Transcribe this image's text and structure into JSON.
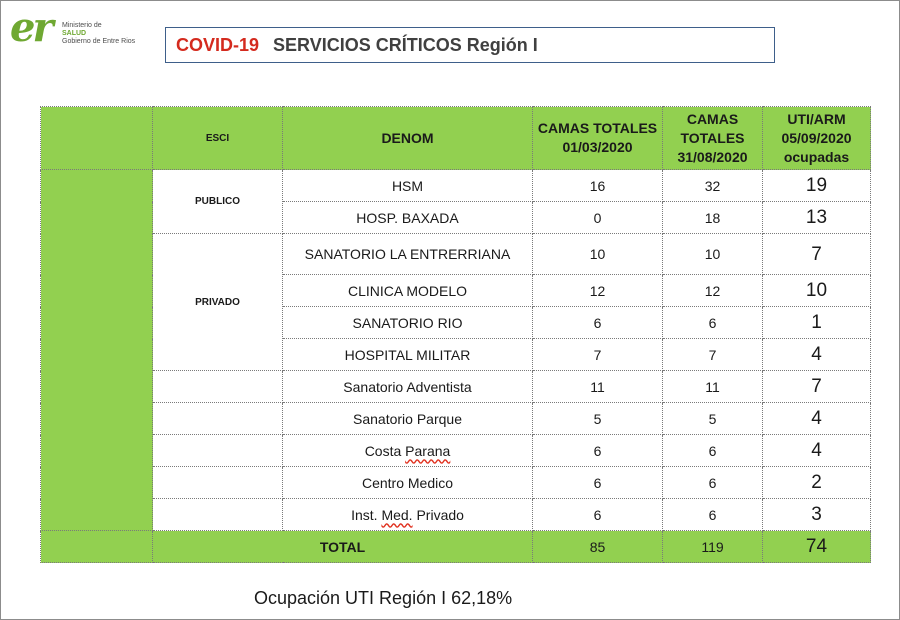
{
  "logo": {
    "mark": "er",
    "line1": "Ministerio de",
    "line2": "SALUD",
    "line3": "Gobierno de Entre Rios"
  },
  "title": {
    "covid": "COVID-19",
    "rest": "SERVICIOS CRÍTICOS  Región I"
  },
  "table": {
    "headers": {
      "esci": "ESCI",
      "denom": "DENOM",
      "camas_totales_1": "CAMAS TOTALES 01/03/2020",
      "camas_totales_2": "CAMAS TOTALES 31/08/2020",
      "uti_arm": "UTI/ARM 05/09/2020 ocupadas"
    },
    "groups": {
      "publico": "PUBLICO",
      "privado": "PRIVADO"
    },
    "rows": [
      {
        "denom": "HSM",
        "c1": "16",
        "c2": "32",
        "occ": "19"
      },
      {
        "denom": "HOSP. BAXADA",
        "c1": "0",
        "c2": "18",
        "occ": "13"
      },
      {
        "denom": "SANATORIO LA ENTRERRIANA",
        "c1": "10",
        "c2": "10",
        "occ": "7"
      },
      {
        "denom": "CLINICA MODELO",
        "c1": "12",
        "c2": "12",
        "occ": "10"
      },
      {
        "denom": "SANATORIO RIO",
        "c1": "6",
        "c2": "6",
        "occ": "1"
      },
      {
        "denom": "HOSPITAL MILITAR",
        "c1": "7",
        "c2": "7",
        "occ": "4"
      },
      {
        "denom": "Sanatorio Adventista",
        "c1": "11",
        "c2": "11",
        "occ": "7"
      },
      {
        "denom": "Sanatorio Parque",
        "c1": "5",
        "c2": "5",
        "occ": "4"
      },
      {
        "denom_a": "Costa ",
        "denom_b": "Parana",
        "c1": "6",
        "c2": "6",
        "occ": "4"
      },
      {
        "denom": "Centro Medico",
        "c1": "6",
        "c2": "6",
        "occ": "2"
      },
      {
        "denom_a": "Inst. ",
        "denom_b": "Med.",
        "denom_c": " Privado",
        "c1": "6",
        "c2": "6",
        "occ": "3"
      }
    ],
    "total": {
      "label": "TOTAL",
      "c1": "85",
      "c2": "119",
      "occ": "74"
    }
  },
  "footer": "Ocupación UTI Región I 62,18%",
  "colors": {
    "header_green": "#92d050",
    "title_red": "#d42a1e",
    "logo_green": "#6fa832"
  }
}
